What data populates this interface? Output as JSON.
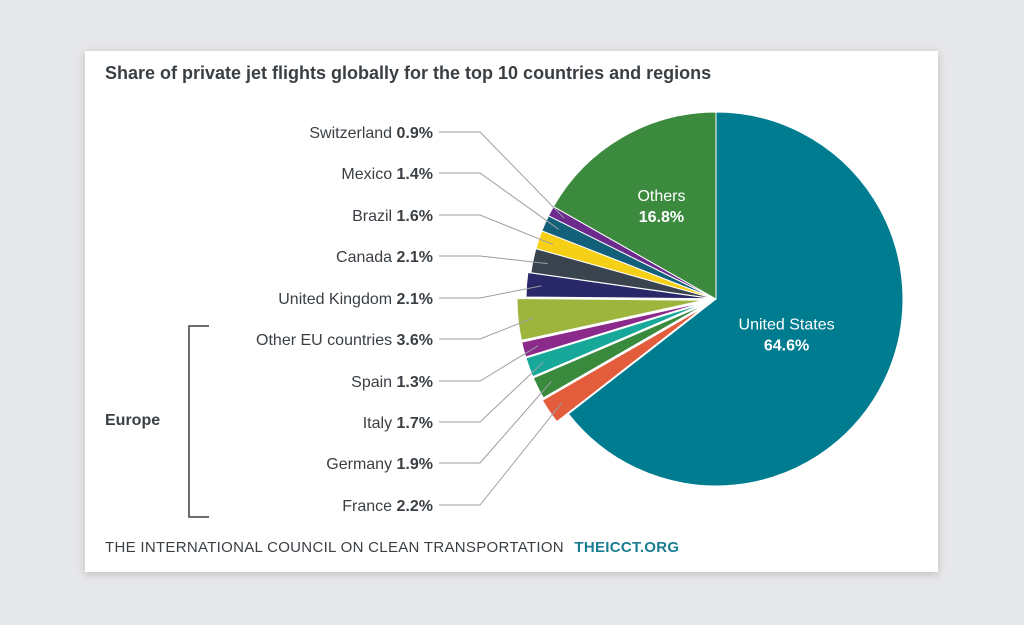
{
  "chart_data": {
    "type": "pie",
    "title": "Share of private jet flights globally for the top 10 countries and regions",
    "unit": "%",
    "slices": [
      {
        "label": "United States",
        "value": 64.6,
        "color": "#007c91",
        "inside": true
      },
      {
        "label": "France",
        "value": 2.2,
        "color": "#e35c3c",
        "group": "Europe"
      },
      {
        "label": "Germany",
        "value": 1.9,
        "color": "#3a8a3e",
        "group": "Europe"
      },
      {
        "label": "Italy",
        "value": 1.7,
        "color": "#17a899",
        "group": "Europe"
      },
      {
        "label": "Spain",
        "value": 1.3,
        "color": "#8b2a8a",
        "group": "Europe"
      },
      {
        "label": "Other EU countries",
        "value": 3.6,
        "color": "#9eb53d",
        "group": "Europe"
      },
      {
        "label": "United Kingdom",
        "value": 2.1,
        "color": "#29296a"
      },
      {
        "label": "Canada",
        "value": 2.1,
        "color": "#39444f"
      },
      {
        "label": "Brazil",
        "value": 1.6,
        "color": "#f6cf17"
      },
      {
        "label": "Mexico",
        "value": 1.4,
        "color": "#12607a"
      },
      {
        "label": "Switzerland",
        "value": 0.9,
        "color": "#6b2a8c"
      },
      {
        "label": "Others",
        "value": 16.8,
        "color": "#3b8a3e",
        "inside": true
      }
    ],
    "group_label": "Europe",
    "legend_order": [
      "Switzerland",
      "Mexico",
      "Brazil",
      "Canada",
      "United Kingdom",
      "Other EU countries",
      "Spain",
      "Italy",
      "Germany",
      "France"
    ]
  },
  "footer": {
    "org": "THE INTERNATIONAL COUNCIL ON CLEAN TRANSPORTATION",
    "site": "THEICCT.ORG"
  }
}
